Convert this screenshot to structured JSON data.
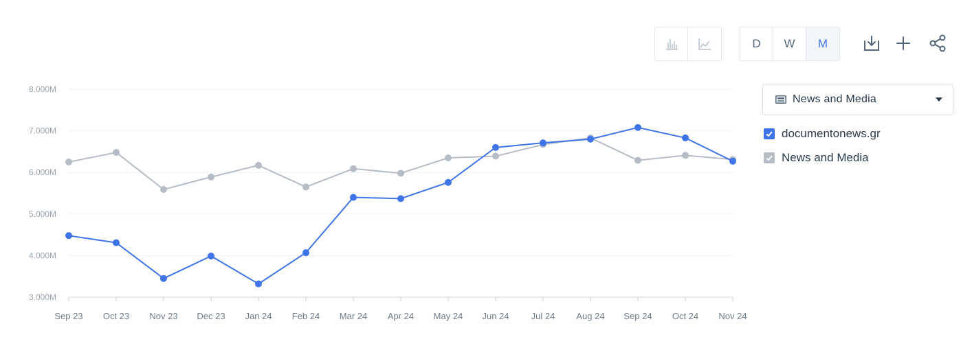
{
  "toolbar": {
    "chart_types": [
      {
        "name": "bar-chart-button",
        "icon": "bar-chart-icon",
        "active": false
      },
      {
        "name": "line-chart-button",
        "icon": "line-chart-icon",
        "active": false
      }
    ],
    "granularity": [
      {
        "label": "D",
        "active": false
      },
      {
        "label": "W",
        "active": false
      },
      {
        "label": "M",
        "active": true
      }
    ],
    "actions": [
      "download-icon",
      "plus-icon",
      "share-icon"
    ]
  },
  "category_select": {
    "icon": "newspaper-icon",
    "label": "News and Media"
  },
  "legend": [
    {
      "label": "documentonews.gr",
      "color": "#3e74e8"
    },
    {
      "label": "News and Media",
      "color": "#b5bcc5"
    }
  ],
  "chart_data": {
    "type": "line",
    "categories": [
      "Sep 23",
      "Oct 23",
      "Nov 23",
      "Dec 23",
      "Jan 24",
      "Feb 24",
      "Mar 24",
      "Apr 24",
      "May 24",
      "Jun 24",
      "Jul 24",
      "Aug 24",
      "Sep 24",
      "Oct 24",
      "Nov 24"
    ],
    "y_ticks": [
      "3.000M",
      "4.000M",
      "5.000M",
      "6.000M",
      "7.000M",
      "8.000M"
    ],
    "ylim": [
      3000000,
      8000000
    ],
    "series": [
      {
        "name": "News and Media",
        "color": "#b5bcc5",
        "values": [
          6250000,
          6480000,
          5590000,
          5890000,
          6170000,
          5650000,
          6090000,
          5980000,
          6350000,
          6390000,
          6670000,
          6830000,
          6290000,
          6410000,
          6310000
        ]
      },
      {
        "name": "documentonews.gr",
        "color": "#3e74e8",
        "values": [
          4480000,
          4310000,
          3450000,
          3990000,
          3320000,
          4070000,
          5400000,
          5370000,
          5760000,
          6600000,
          6710000,
          6800000,
          7080000,
          6830000,
          6270000
        ]
      }
    ],
    "grid": true,
    "legend_position": "right"
  }
}
